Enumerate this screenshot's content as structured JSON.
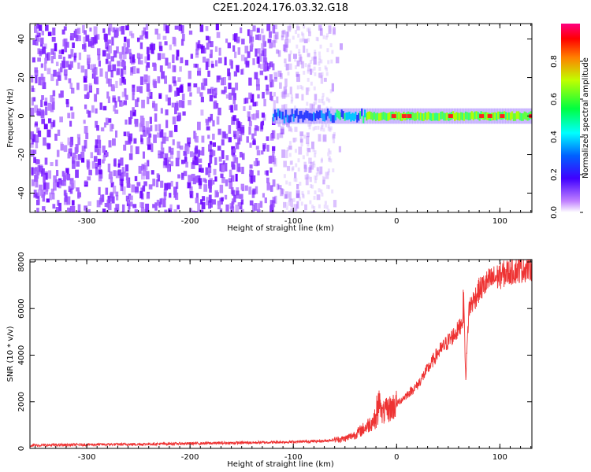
{
  "title": "C2E1.2024.176.03.32.G18",
  "chart_data": [
    {
      "type": "heatmap",
      "xlabel": "Height of straight line (km)",
      "ylabel": "Frequency (Hz)",
      "xlim": [
        -355,
        131
      ],
      "ylim": [
        -50,
        48
      ],
      "xticks": [
        -300,
        -200,
        -100,
        0,
        100
      ],
      "yticks": [
        -40,
        -20,
        0,
        20,
        40
      ],
      "colorbar": {
        "label": "Normalized spectral amplitude",
        "range": [
          0,
          1
        ],
        "ticks": [
          0.0,
          0.2,
          0.4,
          0.6,
          0.8
        ],
        "tick_labels": [
          "0.0",
          "0.2",
          "0.4",
          "0.6",
          "0.8"
        ]
      },
      "description_values": {
        "noise_region_x": [
          -355,
          -60
        ],
        "signal_band_center_hz": 0,
        "signal_onset_x": -120
      }
    },
    {
      "type": "line",
      "xlabel": "Height of straight line (km)",
      "ylabel": "SNR (10 * v/v)",
      "xlim": [
        -355,
        131
      ],
      "ylim": [
        0,
        8100
      ],
      "xticks": [
        -300,
        -200,
        -100,
        0,
        100
      ],
      "yticks": [
        0,
        2000,
        4000,
        6000,
        8000
      ],
      "color": "#ee3333",
      "series": [
        {
          "name": "",
          "x": [
            -355,
            -300,
            -250,
            -200,
            -150,
            -100,
            -70,
            -50,
            -40,
            -30,
            -20,
            -10,
            0,
            10,
            20,
            30,
            40,
            50,
            60,
            65,
            67,
            70,
            80,
            90,
            100,
            110,
            120,
            131
          ],
          "values": [
            130,
            160,
            180,
            210,
            240,
            280,
            320,
            420,
            600,
            900,
            1300,
            1600,
            1900,
            2300,
            2700,
            3400,
            4100,
            4600,
            5100,
            5700,
            3100,
            6000,
            6800,
            7200,
            7400,
            7600,
            7700,
            7800
          ]
        }
      ]
    }
  ]
}
